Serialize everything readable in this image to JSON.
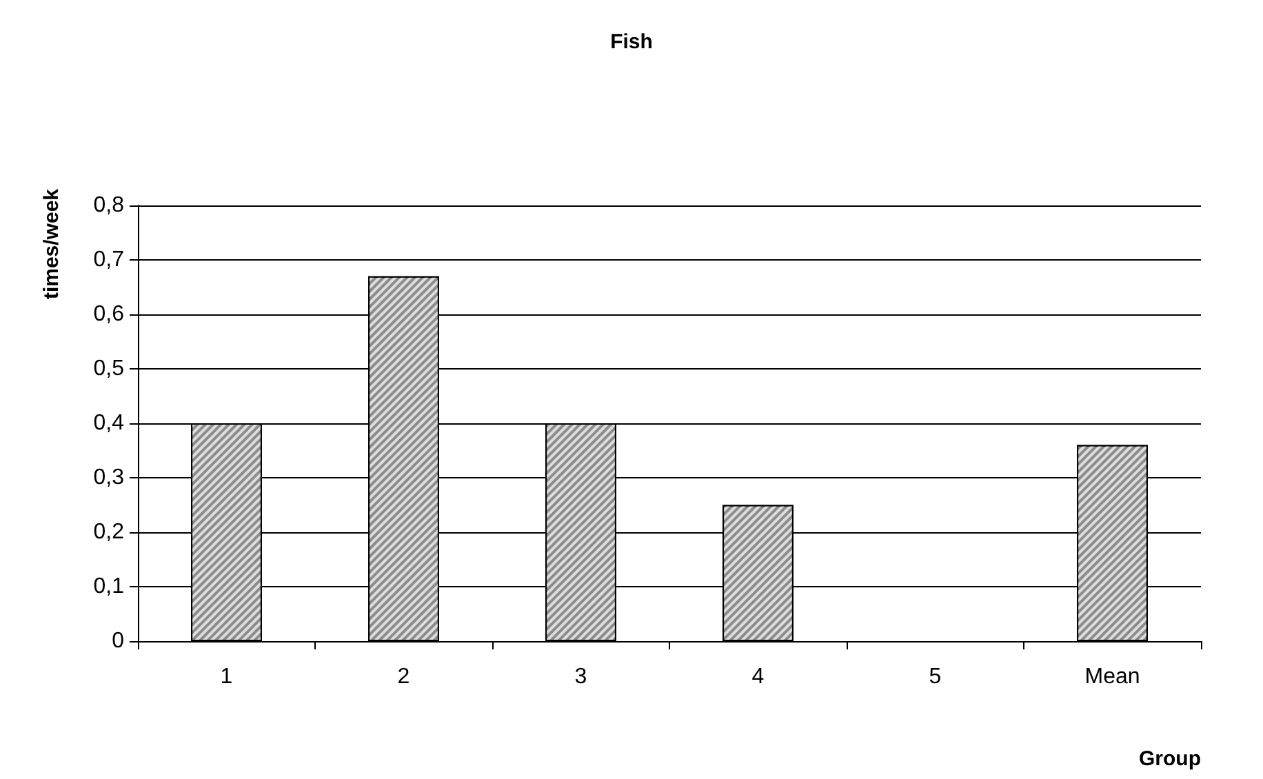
{
  "chart_data": {
    "type": "bar",
    "title": "Fish",
    "xlabel": "Group",
    "ylabel": "times/week",
    "categories": [
      "1",
      "2",
      "3",
      "4",
      "5",
      "Mean"
    ],
    "values": [
      0.4,
      0.67,
      0.4,
      0.25,
      null,
      0.36
    ],
    "color": "#8c8c8c",
    "ylim": [
      0,
      0.8
    ],
    "yticks": [
      0,
      {
        "value": 0.1,
        "label": "0,1"
      },
      {
        "value": 0.2,
        "label": "0,2"
      },
      {
        "value": 0.3,
        "label": "0,3"
      },
      {
        "value": 0.4,
        "label": "0,4"
      },
      {
        "value": 0.5,
        "label": "0,5"
      },
      {
        "value": 0.6,
        "label": "0,6"
      },
      {
        "value": 0.7,
        "label": "0,7"
      },
      {
        "value": 0.8,
        "label": "0,8"
      }
    ],
    "grid": "y"
  }
}
